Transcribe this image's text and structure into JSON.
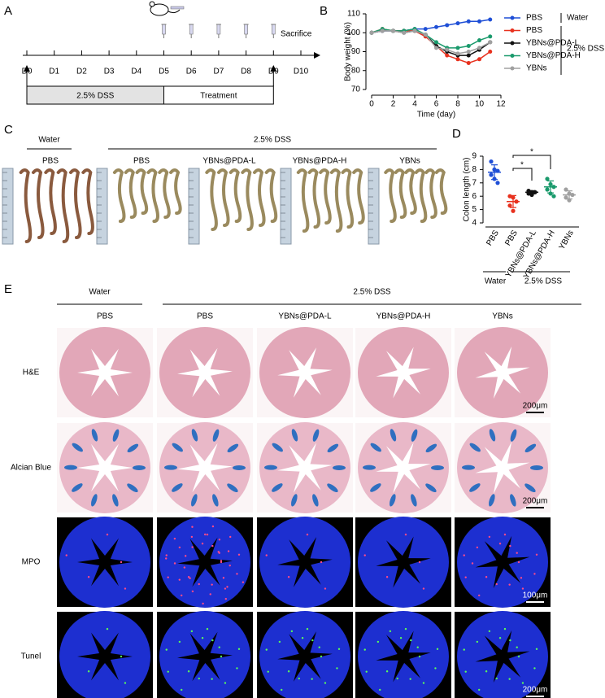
{
  "panel_labels": [
    "A",
    "B",
    "C",
    "D",
    "E"
  ],
  "timeline": {
    "days": [
      "D0",
      "D1",
      "D2",
      "D3",
      "D4",
      "D5",
      "D6",
      "D7",
      "D8",
      "D9",
      "D10"
    ],
    "event": "Sacrifice",
    "phases": [
      "2.5% DSS",
      "Treatment"
    ]
  },
  "chart_data": [
    {
      "type": "line",
      "xlabel": "Time (day)",
      "ylabel": "Body weight (%)",
      "x": [
        0,
        1,
        2,
        3,
        4,
        5,
        6,
        7,
        8,
        9,
        10,
        11
      ],
      "xlim": [
        0,
        12
      ],
      "xticks": [
        0,
        2,
        4,
        6,
        8,
        10,
        12
      ],
      "ylim": [
        70,
        110
      ],
      "yticks": [
        70,
        80,
        90,
        100,
        110
      ],
      "legend_groups": [
        "Water",
        "2.5% DSS"
      ],
      "series": [
        {
          "name": "PBS",
          "color": "#1f4fd6",
          "values": [
            100,
            101,
            101,
            101,
            102,
            102,
            103,
            104,
            105,
            106,
            106,
            107
          ]
        },
        {
          "name": "PBS",
          "color": "#e8311e",
          "values": [
            100,
            102,
            101,
            101,
            101,
            98,
            93,
            88,
            86,
            84,
            86,
            90
          ]
        },
        {
          "name": "YBNs@PDA-L",
          "color": "#111111",
          "values": [
            100,
            101,
            101,
            100,
            101,
            99,
            93,
            90,
            88,
            88,
            91,
            95
          ]
        },
        {
          "name": "YBNs@PDA-H",
          "color": "#1a9a6c",
          "values": [
            100,
            102,
            101,
            101,
            102,
            99,
            95,
            92,
            92,
            93,
            96,
            98
          ]
        },
        {
          "name": "YBNs",
          "color": "#a0a0a0",
          "values": [
            100,
            101,
            101,
            100,
            101,
            99,
            92,
            91,
            89,
            90,
            92,
            95
          ]
        }
      ]
    },
    {
      "type": "strip",
      "ylabel": "Colon length (cm)",
      "categories": [
        "PBS",
        "PBS",
        "YBNs@PDA-L",
        "YBNs@PDA-H",
        "YBNs"
      ],
      "colors": [
        "#1f4fd6",
        "#e8311e",
        "#111111",
        "#1a9a6c",
        "#a0a0a0"
      ],
      "points": [
        [
          8.6,
          8.0,
          7.9,
          7.6,
          7.3,
          7.0
        ],
        [
          6.0,
          5.9,
          5.6,
          5.3,
          4.9
        ],
        [
          6.4,
          6.3,
          6.3,
          6.2,
          6.1
        ],
        [
          7.3,
          6.9,
          6.7,
          6.5,
          6.2,
          6.0
        ],
        [
          6.5,
          6.2,
          6.1,
          5.9,
          5.7
        ]
      ],
      "means": [
        7.8,
        5.6,
        6.3,
        6.7,
        6.1
      ],
      "errors": [
        0.55,
        0.45,
        0.12,
        0.45,
        0.3
      ],
      "ylim": [
        4,
        9
      ],
      "yticks": [
        4,
        5,
        6,
        7,
        8,
        9
      ],
      "category_groups": [
        "Water",
        "2.5% DSS"
      ],
      "significance": [
        "*",
        "*"
      ]
    }
  ],
  "colon_photos": {
    "groups": [
      {
        "label": "Water",
        "columns": [
          "PBS"
        ]
      },
      {
        "label": "2.5% DSS",
        "columns": [
          "PBS",
          "YBNs@PDA-L",
          "YBNs@PDA-H",
          "YBNs"
        ]
      }
    ]
  },
  "histology": {
    "groups": [
      {
        "label": "Water",
        "columns": [
          "PBS"
        ]
      },
      {
        "label": "2.5% DSS",
        "columns": [
          "PBS",
          "YBNs@PDA-L",
          "YBNs@PDA-H",
          "YBNs"
        ]
      }
    ],
    "rows": [
      {
        "label": "H&E",
        "scale_bar": "200μm"
      },
      {
        "label": "Alcian Blue",
        "scale_bar": "200μm"
      },
      {
        "label": "MPO",
        "scale_bar": "100μm"
      },
      {
        "label": "Tunel",
        "scale_bar": "200μm"
      }
    ]
  }
}
